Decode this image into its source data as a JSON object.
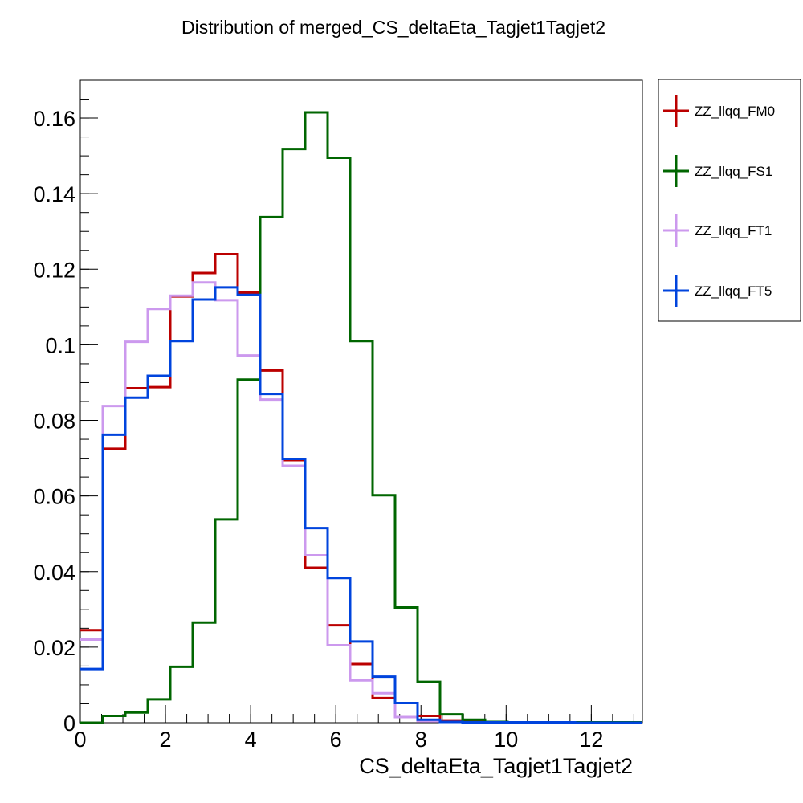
{
  "chart_data": {
    "type": "histogram",
    "title": "Distribution of merged_CS_deltaEta_Tagjet1Tagjet2",
    "xlabel": "CS_deltaEta_Tagjet1Tagjet2",
    "ylabel": "",
    "xlim": [
      0,
      13.2
    ],
    "ylim": [
      0,
      0.17
    ],
    "bin_width": 0.528,
    "x_ticks": [
      0,
      2,
      4,
      6,
      8,
      10,
      12
    ],
    "x_tick_labels": [
      "0",
      "2",
      "4",
      "6",
      "8",
      "10",
      "12"
    ],
    "y_ticks": [
      0,
      0.02,
      0.04,
      0.06,
      0.08,
      0.1,
      0.12,
      0.14,
      0.16
    ],
    "y_tick_labels": [
      "0",
      "0.02",
      "0.04",
      "0.06",
      "0.08",
      "0.1",
      "0.12",
      "0.14",
      "0.16"
    ],
    "legend_position": "right-outside",
    "series": [
      {
        "name": "ZZ_llqq_FM0",
        "color": "#bb0000",
        "values": [
          0.0245,
          0.0725,
          0.0885,
          0.0888,
          0.1128,
          0.119,
          0.124,
          0.1138,
          0.0932,
          0.0695,
          0.041,
          0.0258,
          0.0155,
          0.0065,
          0.0015,
          0.0018,
          0.0004,
          0.0002,
          0.0001,
          0.0001,
          0.0001,
          0.0001,
          0,
          0,
          0
        ]
      },
      {
        "name": "ZZ_llqq_FS1",
        "color": "#006600",
        "values": [
          0.0,
          0.0018,
          0.0027,
          0.0062,
          0.0148,
          0.0265,
          0.0538,
          0.0908,
          0.1338,
          0.1518,
          0.1615,
          0.1495,
          0.101,
          0.0602,
          0.0305,
          0.0108,
          0.0022,
          0.0008,
          0.0002,
          0.0001,
          0.0001,
          0.0001,
          0.0001,
          0.0001,
          0.0001
        ]
      },
      {
        "name": "ZZ_llqq_FT1",
        "color": "#cc99ee",
        "values": [
          0.022,
          0.0838,
          0.1008,
          0.1095,
          0.113,
          0.1165,
          0.1118,
          0.0972,
          0.0855,
          0.068,
          0.0443,
          0.0205,
          0.0112,
          0.0078,
          0.0015,
          0.0004,
          0.0002,
          0.0001,
          0.0001,
          0.0001,
          0,
          0,
          0,
          0,
          0
        ]
      },
      {
        "name": "ZZ_llqq_FT5",
        "color": "#0044dd",
        "values": [
          0.0142,
          0.0762,
          0.086,
          0.0918,
          0.101,
          0.112,
          0.1152,
          0.1132,
          0.087,
          0.0698,
          0.0515,
          0.0383,
          0.0215,
          0.0122,
          0.0052,
          0.0008,
          0.0002,
          0.0001,
          0.0001,
          0.0001,
          0.0001,
          0.0001,
          0,
          0,
          0
        ]
      }
    ]
  }
}
